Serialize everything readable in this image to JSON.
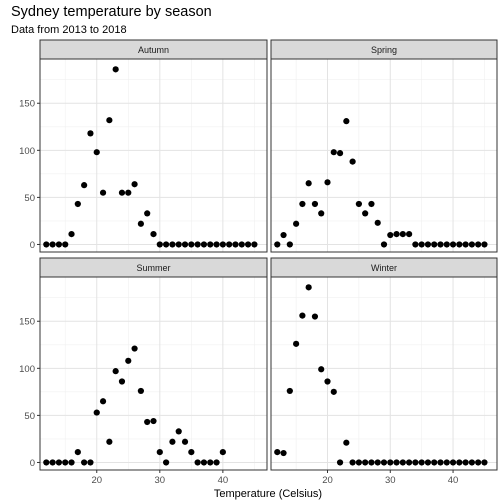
{
  "title": "Sydney temperature by season",
  "subtitle": "Data from 2013 to 2018",
  "chart_data": {
    "type": "scatter",
    "title": "Sydney temperature by season",
    "subtitle": "Data from 2013 to 2018",
    "xlabel": "Temperature (Celsius)",
    "ylabel": "",
    "xlim": [
      11,
      47
    ],
    "ylim": [
      -8,
      197
    ],
    "x_ticks": [
      20,
      30,
      40
    ],
    "y_ticks": [
      0,
      50,
      100,
      150
    ],
    "grid": true,
    "facet_layout": "2x2",
    "panels": [
      {
        "name": "Autumn",
        "points": [
          [
            12,
            0
          ],
          [
            13,
            0
          ],
          [
            14,
            0
          ],
          [
            15,
            0
          ],
          [
            16,
            11
          ],
          [
            17,
            43
          ],
          [
            18,
            63
          ],
          [
            19,
            118
          ],
          [
            20,
            98
          ],
          [
            21,
            55
          ],
          [
            22,
            132
          ],
          [
            23,
            186
          ],
          [
            24,
            55
          ],
          [
            25,
            55
          ],
          [
            26,
            64
          ],
          [
            27,
            22
          ],
          [
            28,
            33
          ],
          [
            29,
            11
          ],
          [
            30,
            0
          ],
          [
            31,
            0
          ],
          [
            32,
            0
          ],
          [
            33,
            0
          ],
          [
            34,
            0
          ],
          [
            35,
            0
          ],
          [
            36,
            0
          ],
          [
            37,
            0
          ],
          [
            38,
            0
          ],
          [
            39,
            0
          ],
          [
            40,
            0
          ],
          [
            41,
            0
          ],
          [
            42,
            0
          ],
          [
            43,
            0
          ],
          [
            44,
            0
          ],
          [
            45,
            0
          ]
        ]
      },
      {
        "name": "Spring",
        "points": [
          [
            12,
            0
          ],
          [
            13,
            10
          ],
          [
            14,
            0
          ],
          [
            15,
            22
          ],
          [
            16,
            43
          ],
          [
            17,
            65
          ],
          [
            18,
            43
          ],
          [
            19,
            33
          ],
          [
            20,
            66
          ],
          [
            21,
            98
          ],
          [
            22,
            97
          ],
          [
            23,
            131
          ],
          [
            24,
            88
          ],
          [
            25,
            43
          ],
          [
            26,
            33
          ],
          [
            27,
            43
          ],
          [
            28,
            23
          ],
          [
            29,
            0
          ],
          [
            30,
            10
          ],
          [
            31,
            11
          ],
          [
            32,
            11
          ],
          [
            33,
            11
          ],
          [
            34,
            0
          ],
          [
            35,
            0
          ],
          [
            36,
            0
          ],
          [
            37,
            0
          ],
          [
            38,
            0
          ],
          [
            39,
            0
          ],
          [
            40,
            0
          ],
          [
            41,
            0
          ],
          [
            42,
            0
          ],
          [
            43,
            0
          ],
          [
            44,
            0
          ],
          [
            45,
            0
          ]
        ]
      },
      {
        "name": "Summer",
        "points": [
          [
            12,
            0
          ],
          [
            13,
            0
          ],
          [
            14,
            0
          ],
          [
            15,
            0
          ],
          [
            16,
            0
          ],
          [
            17,
            11
          ],
          [
            18,
            0
          ],
          [
            19,
            0
          ],
          [
            20,
            53
          ],
          [
            21,
            65
          ],
          [
            22,
            22
          ],
          [
            23,
            97
          ],
          [
            24,
            86
          ],
          [
            25,
            108
          ],
          [
            26,
            121
          ],
          [
            27,
            76
          ],
          [
            28,
            43
          ],
          [
            29,
            44
          ],
          [
            30,
            11
          ],
          [
            31,
            0
          ],
          [
            32,
            22
          ],
          [
            33,
            33
          ],
          [
            34,
            22
          ],
          [
            35,
            11
          ],
          [
            36,
            0
          ],
          [
            37,
            0
          ],
          [
            38,
            0
          ],
          [
            39,
            0
          ],
          [
            40,
            11
          ]
        ]
      },
      {
        "name": "Winter",
        "points": [
          [
            12,
            11
          ],
          [
            13,
            10
          ],
          [
            14,
            76
          ],
          [
            15,
            126
          ],
          [
            16,
            156
          ],
          [
            17,
            186
          ],
          [
            18,
            155
          ],
          [
            19,
            99
          ],
          [
            20,
            86
          ],
          [
            21,
            75
          ],
          [
            22,
            0
          ],
          [
            23,
            21
          ],
          [
            24,
            0
          ],
          [
            25,
            0
          ],
          [
            26,
            0
          ],
          [
            27,
            0
          ],
          [
            28,
            0
          ],
          [
            29,
            0
          ],
          [
            30,
            0
          ],
          [
            31,
            0
          ],
          [
            32,
            0
          ],
          [
            33,
            0
          ],
          [
            34,
            0
          ],
          [
            35,
            0
          ],
          [
            36,
            0
          ],
          [
            37,
            0
          ],
          [
            38,
            0
          ],
          [
            39,
            0
          ],
          [
            40,
            0
          ],
          [
            41,
            0
          ],
          [
            42,
            0
          ],
          [
            43,
            0
          ],
          [
            44,
            0
          ],
          [
            45,
            0
          ]
        ]
      }
    ]
  }
}
